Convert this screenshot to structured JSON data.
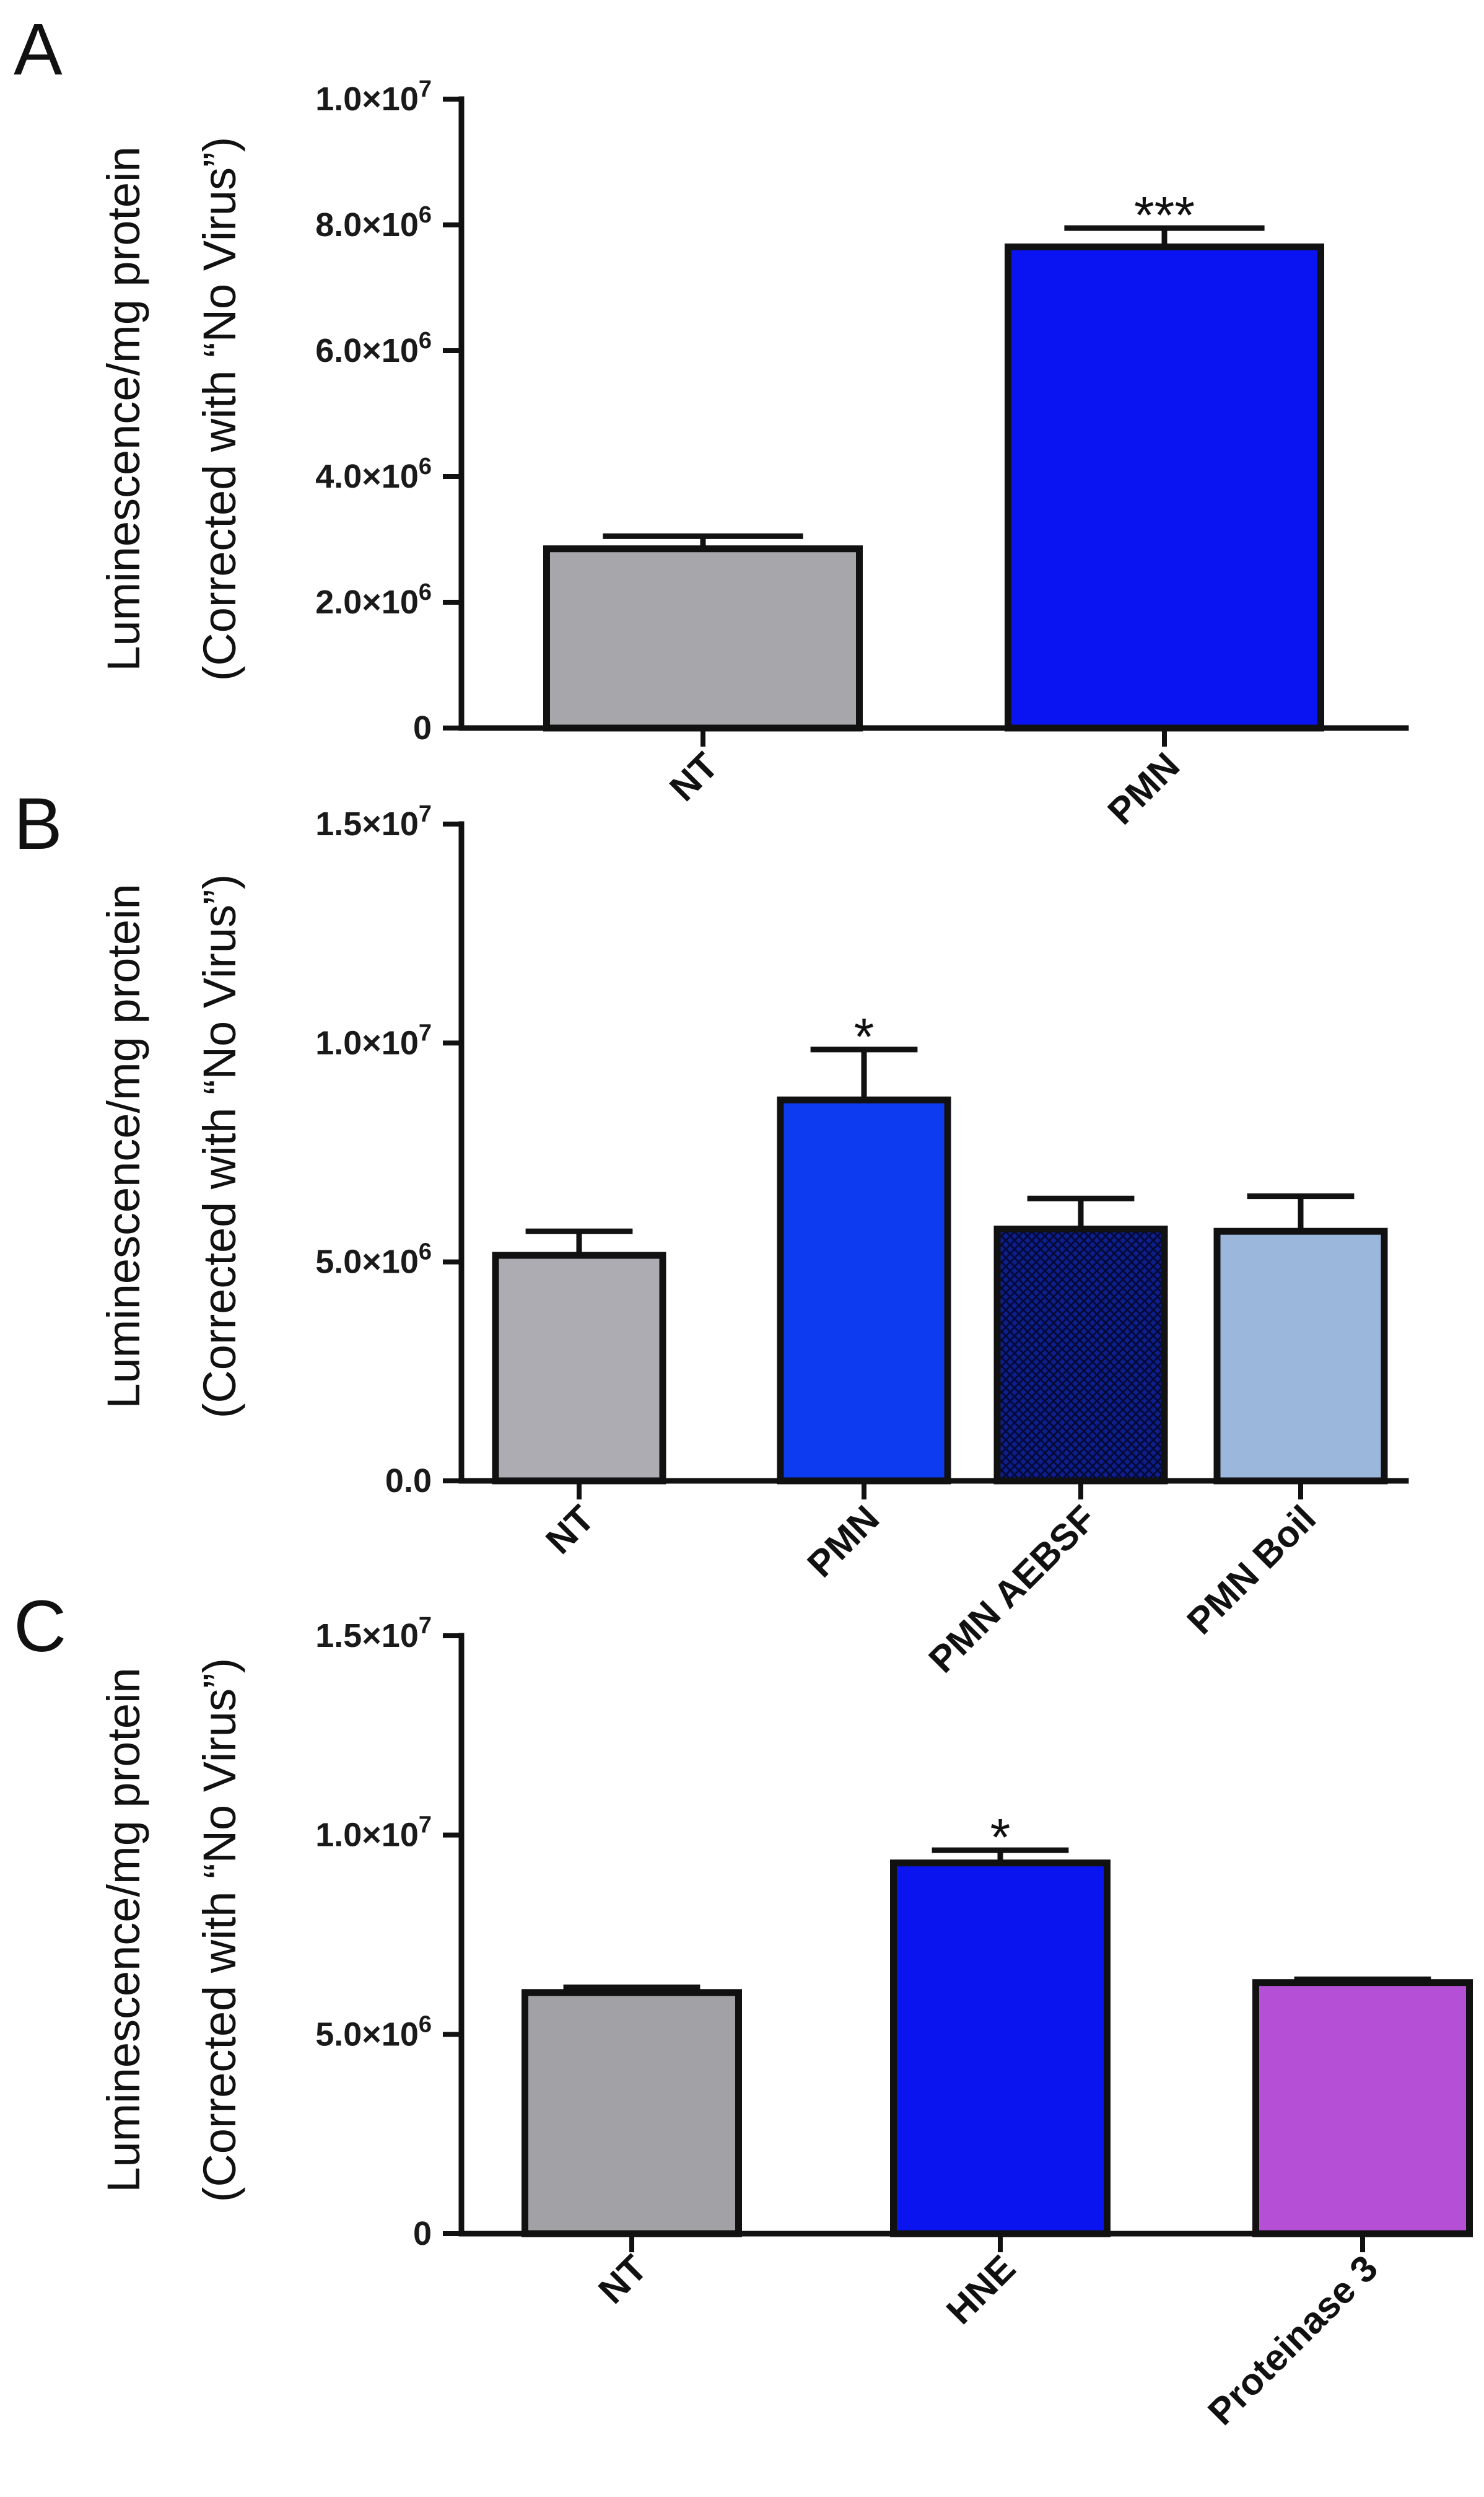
{
  "chart_data": [
    {
      "type": "bar",
      "panel": "A",
      "ylabel_line1": "Luminescence/mg protein",
      "ylabel_line2": "(Corrected with “No Virus”)",
      "ylim": [
        0,
        10000000
      ],
      "yticks": [
        {
          "value": 0,
          "label": "0"
        },
        {
          "value": 2000000,
          "label": "2.0×10",
          "exp": "6"
        },
        {
          "value": 4000000,
          "label": "4.0×10",
          "exp": "6"
        },
        {
          "value": 6000000,
          "label": "6.0×10",
          "exp": "6"
        },
        {
          "value": 8000000,
          "label": "8.0×10",
          "exp": "6"
        },
        {
          "value": 10000000,
          "label": "1.0×10",
          "exp": "7"
        }
      ],
      "categories": [
        "NT",
        "PMN"
      ],
      "values": [
        2850000,
        7650000
      ],
      "errors": [
        200000,
        300000
      ],
      "significance": [
        "",
        "***"
      ],
      "colors": [
        "#a7a7ab",
        "#0a14f2"
      ]
    },
    {
      "type": "bar",
      "panel": "B",
      "ylabel_line1": "Luminescence/mg protein",
      "ylabel_line2": "(Corrected with “No Virus”)",
      "ylim": [
        0,
        15000000
      ],
      "yticks": [
        {
          "value": 0,
          "label": "0.0"
        },
        {
          "value": 5000000,
          "label": "5.0×10",
          "exp": "6"
        },
        {
          "value": 10000000,
          "label": "1.0×10",
          "exp": "7"
        },
        {
          "value": 15000000,
          "label": "1.5×10",
          "exp": "7"
        }
      ],
      "categories": [
        "NT",
        "PMN",
        "PMN AEBSF",
        "PMN Boil"
      ],
      "values": [
        5150000,
        8700000,
        5750000,
        5700000
      ],
      "errors": [
        550000,
        1150000,
        700000,
        800000
      ],
      "significance": [
        "",
        "*",
        "",
        ""
      ],
      "colors": [
        "#acacb2",
        "#0d3cf0",
        "#0d1f8c",
        "#9bb8dc"
      ],
      "patterns": [
        "",
        "",
        "crosshatch",
        ""
      ]
    },
    {
      "type": "bar",
      "panel": "C",
      "ylabel_line1": "Luminescence/mg protein",
      "ylabel_line2": "(Corrected with “No Virus”)",
      "ylim": [
        0,
        15000000
      ],
      "yticks": [
        {
          "value": 0,
          "label": "0"
        },
        {
          "value": 5000000,
          "label": "5.0×10",
          "exp": "6"
        },
        {
          "value": 10000000,
          "label": "1.0×10",
          "exp": "7"
        },
        {
          "value": 15000000,
          "label": "1.5×10",
          "exp": "7"
        }
      ],
      "categories": [
        "NT",
        "HNE",
        "Proteinase 3"
      ],
      "values": [
        6050000,
        9300000,
        6300000
      ],
      "errors": [
        130000,
        320000,
        80000
      ],
      "significance": [
        "",
        "*",
        ""
      ],
      "colors": [
        "#a1a1a6",
        "#0a14ee",
        "#b550d6"
      ]
    }
  ]
}
